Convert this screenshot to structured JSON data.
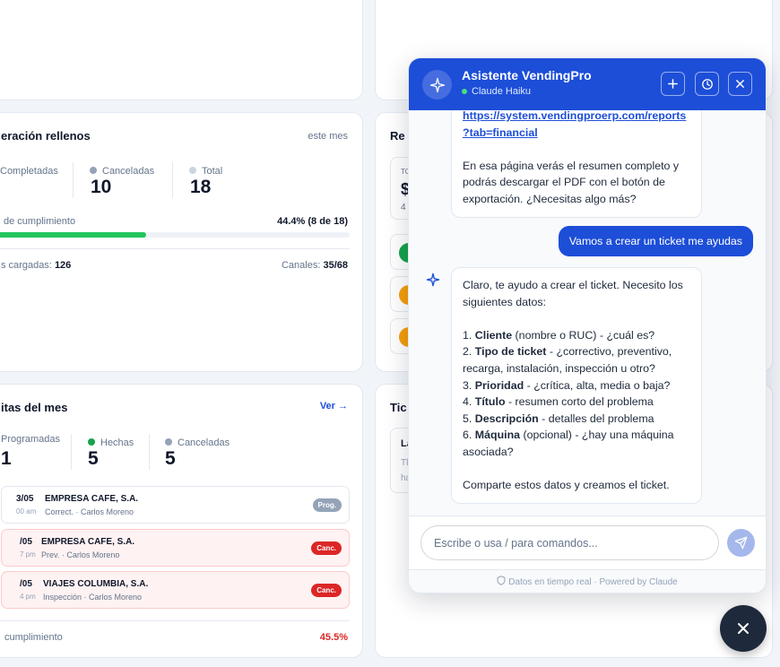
{
  "rellenos": {
    "title": "eración rellenos",
    "period": "este mes",
    "stats": [
      {
        "label": "Completadas",
        "value": ""
      },
      {
        "label": "Canceladas",
        "value": "10"
      },
      {
        "label": "Total",
        "value": "18"
      }
    ],
    "compliance_label": "de cumplimiento",
    "compliance_value": "44.4% (8 de 18)",
    "compliance_fraction": 0.444,
    "cargadas_label": "s cargadas:",
    "cargadas_value": "126",
    "canales_label": "Canales:",
    "canales_value": "35/68"
  },
  "right_mid": {
    "title": "Re",
    "box_label": "TO",
    "box_value": "$",
    "box_sub": "4"
  },
  "visitas": {
    "title": "itas del mes",
    "link": "Ver →",
    "stats": [
      {
        "label": "Programadas",
        "value": "1"
      },
      {
        "label": "Hechas",
        "value": "5"
      },
      {
        "label": "Canceladas",
        "value": "5"
      }
    ],
    "rows": [
      {
        "date": "3/05",
        "time": "00 am",
        "company": "EMPRESA CAFE, S.A.",
        "detail": "Correct. · Carlos Moreno",
        "badge": "Prog.",
        "status": "prog"
      },
      {
        "date": "/05",
        "time": "7 pm",
        "company": "EMPRESA CAFE, S.A.",
        "detail": "Prev. · Carlos Moreno",
        "badge": "Canc.",
        "status": "canc"
      },
      {
        "date": "/05",
        "time": "4 pm",
        "company": "VIAJES COLUMBIA, S.A.",
        "detail": "Inspección · Carlos Moreno",
        "badge": "Canc.",
        "status": "canc"
      }
    ],
    "footer_label": "cumplimiento",
    "footer_value": "45.5%"
  },
  "right_bot": {
    "title": "Tic",
    "box_label": "La",
    "box_line1": "Tl",
    "box_line2": "ha"
  },
  "chat": {
    "title": "Asistente VendingPro",
    "model": "Claude Haiku",
    "messages": {
      "ai1": {
        "link_line1": "https://system.vendingproerp.com/reports",
        "link_line2": "?tab=financial",
        "text": "En esa página verás el resumen completo y podrás descargar el PDF con el botón de exportación. ¿Necesitas algo más?"
      },
      "user1": "Vamos a crear un ticket me ayudas",
      "ai2": {
        "intro": "Claro, te ayudo a crear el ticket. Necesito los siguientes datos:",
        "items": [
          {
            "num": "1.",
            "bold": "Cliente",
            "rest": " (nombre o RUC) - ¿cuál es?"
          },
          {
            "num": "2.",
            "bold": "Tipo de ticket",
            "rest": " - ¿correctivo, preventivo, recarga, instalación, inspección u otro?"
          },
          {
            "num": "3.",
            "bold": "Prioridad",
            "rest": " - ¿crítica, alta, media o baja?"
          },
          {
            "num": "4.",
            "bold": "Título",
            "rest": " - resumen corto del problema"
          },
          {
            "num": "5.",
            "bold": "Descripción",
            "rest": " - detalles del problema"
          },
          {
            "num": "6.",
            "bold": "Máquina",
            "rest": " (opcional) - ¿hay una máquina asociada?"
          }
        ],
        "outro": "Comparte estos datos y creamos el ticket."
      }
    },
    "input_placeholder": "Escribe o usa / para comandos...",
    "footer": "Datos en tiempo real · Powered by Claude"
  },
  "colors": {
    "accent": "#1d4ed8",
    "success": "#22c55e",
    "danger": "#dc2626",
    "neutral": "#94a3b8"
  }
}
